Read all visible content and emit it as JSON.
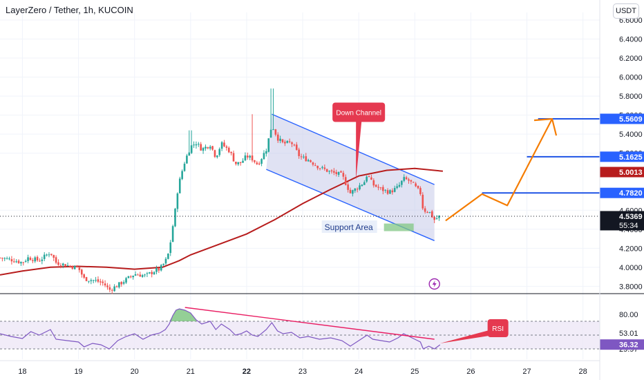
{
  "header": {
    "title": "LayerZero / Tether, 1h, KUCOIN",
    "currency_button": "USDT"
  },
  "colors": {
    "up": "#26a69a",
    "down": "#ef5350",
    "ma": "#b71c1c",
    "channel": "#2962ff",
    "channel_fill": "#c7cbea",
    "support": "#81c784",
    "projection": "#f57c00",
    "resistance": "#1e53e5",
    "rsi_line": "#7e57c2",
    "rsi_band": "#ede7f6",
    "rsi_trend": "#e91e63",
    "callout": "#e53950"
  },
  "chart_data": [
    {
      "type": "candlestick",
      "title": "LayerZero / Tether, 1h, KUCOIN",
      "xlabel": "",
      "ylabel": "",
      "x_ticks": [
        "18",
        "19",
        "20",
        "21",
        "22",
        "23",
        "24",
        "25",
        "26",
        "27",
        "28"
      ],
      "x_range": [
        17.6,
        28.3
      ],
      "y_ticks": [
        "3.8000",
        "4.0000",
        "4.2000",
        "4.4000",
        "4.6000",
        "5.2000",
        "5.4000",
        "5.6000",
        "5.8000",
        "6.0000",
        "6.2000",
        "6.4000",
        "6.6000"
      ],
      "y_range": [
        3.73,
        6.68
      ],
      "grid": true,
      "close_path": [
        [
          17.6,
          4.1
        ],
        [
          17.8,
          4.08
        ],
        [
          18.0,
          4.05
        ],
        [
          18.1,
          4.1
        ],
        [
          18.3,
          4.07
        ],
        [
          18.5,
          4.16
        ],
        [
          18.6,
          4.05
        ],
        [
          18.8,
          4.02
        ],
        [
          19.0,
          3.99
        ],
        [
          19.1,
          3.88
        ],
        [
          19.3,
          3.86
        ],
        [
          19.45,
          3.83
        ],
        [
          19.55,
          3.76
        ],
        [
          19.7,
          3.81
        ],
        [
          19.85,
          3.87
        ],
        [
          20.0,
          3.93
        ],
        [
          20.2,
          3.91
        ],
        [
          20.35,
          3.96
        ],
        [
          20.45,
          3.98
        ],
        [
          20.55,
          4.06
        ],
        [
          20.62,
          4.17
        ],
        [
          20.66,
          4.35
        ],
        [
          20.72,
          4.57
        ],
        [
          20.76,
          4.78
        ],
        [
          20.82,
          4.95
        ],
        [
          20.9,
          5.12
        ],
        [
          21.0,
          5.27
        ],
        [
          21.1,
          5.31
        ],
        [
          21.2,
          5.24
        ],
        [
          21.35,
          5.29
        ],
        [
          21.45,
          5.16
        ],
        [
          21.55,
          5.3
        ],
        [
          21.7,
          5.22
        ],
        [
          21.8,
          5.09
        ],
        [
          21.9,
          5.1
        ],
        [
          22.0,
          5.17
        ],
        [
          22.1,
          5.14
        ],
        [
          22.2,
          5.08
        ],
        [
          22.35,
          5.24
        ],
        [
          22.45,
          5.5
        ],
        [
          22.55,
          5.36
        ],
        [
          22.65,
          5.3
        ],
        [
          22.8,
          5.31
        ],
        [
          22.95,
          5.16
        ],
        [
          23.1,
          5.13
        ],
        [
          23.3,
          5.05
        ],
        [
          23.5,
          5.0
        ],
        [
          23.7,
          4.97
        ],
        [
          23.85,
          4.78
        ],
        [
          24.0,
          4.85
        ],
        [
          24.1,
          4.9
        ],
        [
          24.15,
          4.98
        ],
        [
          24.25,
          4.87
        ],
        [
          24.4,
          4.82
        ],
        [
          24.55,
          4.79
        ],
        [
          24.7,
          4.84
        ],
        [
          24.8,
          4.93
        ],
        [
          24.9,
          4.91
        ],
        [
          25.0,
          4.85
        ],
        [
          25.1,
          4.78
        ],
        [
          25.15,
          4.6
        ],
        [
          25.25,
          4.59
        ],
        [
          25.35,
          4.5
        ],
        [
          25.45,
          4.54
        ]
      ],
      "moving_average": [
        [
          17.6,
          3.92
        ],
        [
          18.0,
          3.96
        ],
        [
          18.5,
          4.0
        ],
        [
          19.0,
          4.01
        ],
        [
          19.5,
          4.0
        ],
        [
          20.0,
          3.98
        ],
        [
          20.5,
          4.0
        ],
        [
          20.8,
          4.07
        ],
        [
          21.0,
          4.13
        ],
        [
          21.5,
          4.24
        ],
        [
          22.0,
          4.35
        ],
        [
          22.5,
          4.5
        ],
        [
          23.0,
          4.67
        ],
        [
          23.5,
          4.82
        ],
        [
          24.0,
          4.96
        ],
        [
          24.5,
          5.02
        ],
        [
          25.0,
          5.04
        ],
        [
          25.5,
          5.01
        ]
      ],
      "price_labels": [
        {
          "value": 5.5609,
          "text": "5.5609",
          "color": "#2962ff"
        },
        {
          "value": 5.1625,
          "text": "5.1625",
          "color": "#2962ff"
        },
        {
          "value": 5.0013,
          "text": "5.0013",
          "color": "#b71c1c"
        },
        {
          "value": 4.782,
          "text": "4.7820",
          "color": "#2962ff"
        },
        {
          "value": 4.5369,
          "text": "4.5369",
          "color": "#131722"
        }
      ],
      "countdown": "55:34",
      "resistance_levels": [
        5.5609,
        5.1625,
        4.782
      ],
      "channel": {
        "upper": [
          [
            22.45,
            5.61
          ],
          [
            25.35,
            4.87
          ]
        ],
        "lower": [
          [
            22.35,
            5.03
          ],
          [
            25.35,
            4.28
          ]
        ]
      },
      "support_area": {
        "x": [
          24.45,
          24.98
        ],
        "y": [
          4.38,
          4.46
        ],
        "label": "Support Area"
      },
      "projection": [
        [
          25.55,
          4.49
        ],
        [
          26.2,
          4.77
        ],
        [
          26.65,
          4.65
        ],
        [
          27.45,
          5.56
        ]
      ],
      "annotations": [
        {
          "text": "Down Channel",
          "x": 24.0,
          "y": 5.63,
          "target": [
            23.95,
            4.91
          ]
        },
        {
          "text": "RSI",
          "x": 26.2,
          "y": 2.0,
          "pane": "rsi"
        }
      ]
    },
    {
      "type": "line",
      "title": "",
      "xlabel": "",
      "ylabel": "",
      "series_name": "RSI",
      "y_ticks": [
        "80.00",
        "53.01",
        "29.97"
      ],
      "y_range": [
        15,
        105
      ],
      "band": [
        30,
        70
      ],
      "last_value": "36.32",
      "values": [
        [
          17.6,
          52
        ],
        [
          17.8,
          48
        ],
        [
          18.0,
          45
        ],
        [
          18.15,
          55
        ],
        [
          18.3,
          50
        ],
        [
          18.5,
          58
        ],
        [
          18.6,
          44
        ],
        [
          18.8,
          42
        ],
        [
          19.0,
          40
        ],
        [
          19.1,
          33
        ],
        [
          19.25,
          38
        ],
        [
          19.4,
          36
        ],
        [
          19.55,
          30
        ],
        [
          19.7,
          42
        ],
        [
          19.85,
          48
        ],
        [
          20.0,
          52
        ],
        [
          20.15,
          44
        ],
        [
          20.3,
          50
        ],
        [
          20.45,
          53
        ],
        [
          20.55,
          58
        ],
        [
          20.62,
          66
        ],
        [
          20.68,
          78
        ],
        [
          20.74,
          86
        ],
        [
          20.8,
          88
        ],
        [
          20.9,
          86
        ],
        [
          21.0,
          82
        ],
        [
          21.1,
          72
        ],
        [
          21.2,
          66
        ],
        [
          21.35,
          70
        ],
        [
          21.45,
          58
        ],
        [
          21.55,
          66
        ],
        [
          21.7,
          58
        ],
        [
          21.8,
          50
        ],
        [
          21.9,
          52
        ],
        [
          22.0,
          56
        ],
        [
          22.1,
          50
        ],
        [
          22.2,
          48
        ],
        [
          22.35,
          58
        ],
        [
          22.45,
          68
        ],
        [
          22.55,
          56
        ],
        [
          22.65,
          52
        ],
        [
          22.8,
          54
        ],
        [
          22.95,
          46
        ],
        [
          23.1,
          48
        ],
        [
          23.3,
          44
        ],
        [
          23.5,
          46
        ],
        [
          23.7,
          42
        ],
        [
          23.85,
          34
        ],
        [
          24.0,
          42
        ],
        [
          24.15,
          50
        ],
        [
          24.25,
          44
        ],
        [
          24.4,
          42
        ],
        [
          24.55,
          40
        ],
        [
          24.7,
          46
        ],
        [
          24.8,
          52
        ],
        [
          24.9,
          48
        ],
        [
          25.0,
          44
        ],
        [
          25.1,
          40
        ],
        [
          25.15,
          30
        ],
        [
          25.25,
          34
        ],
        [
          25.35,
          30
        ],
        [
          25.45,
          36
        ]
      ],
      "trendline": [
        [
          20.9,
          90
        ],
        [
          25.35,
          44
        ]
      ],
      "overbought_highlight": [
        20.6,
        21.1
      ]
    }
  ]
}
